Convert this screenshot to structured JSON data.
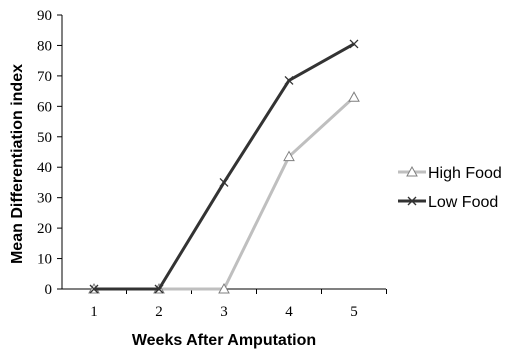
{
  "chart_data": {
    "type": "line",
    "xlabel": "Weeks After Amputation",
    "ylabel": "Mean Differentiation index",
    "x": [
      1,
      2,
      3,
      4,
      5
    ],
    "ylim": [
      0,
      90
    ],
    "yticks": [
      0,
      10,
      20,
      30,
      40,
      50,
      60,
      70,
      80,
      90
    ],
    "grid": false,
    "legend_position": "right",
    "series": [
      {
        "name": "High Food",
        "values": [
          0,
          0,
          0,
          43.5,
          63
        ],
        "color": "#bfbfbf",
        "marker": "triangle-icon"
      },
      {
        "name": "Low Food",
        "values": [
          0,
          0,
          35,
          68.5,
          80.5
        ],
        "color": "#333333",
        "marker": "x-icon"
      }
    ]
  }
}
